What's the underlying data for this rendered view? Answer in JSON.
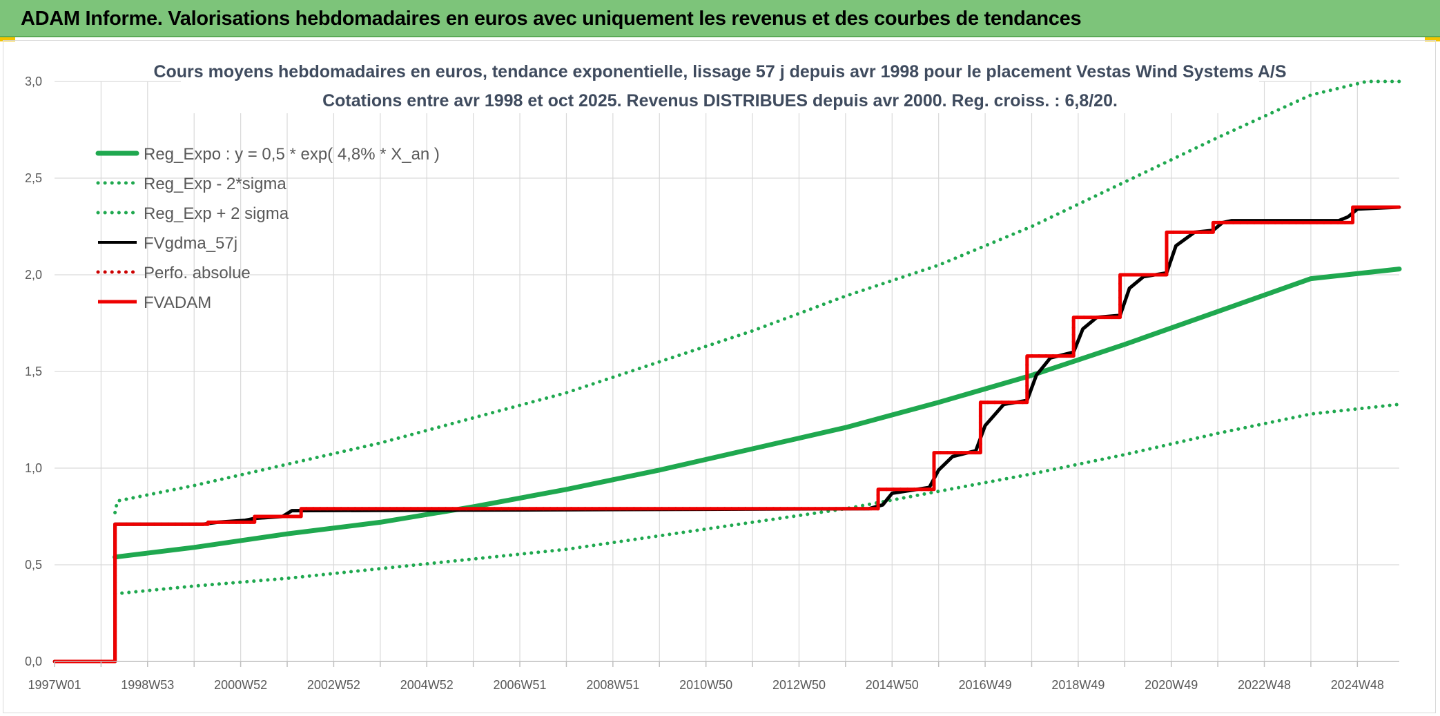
{
  "banner": {
    "title": "ADAM Informe. Valorisations hebdomadaires en euros avec uniquement les revenus et des courbes de tendances"
  },
  "colors": {
    "banner_bg": "#7dc47a",
    "reg_green": "#1fa84f",
    "fvgdma_black": "#000000",
    "fvadam_red": "#ee0000",
    "perfo_red": "#cc0000",
    "grid": "#d9d9d9",
    "title_text": "#3f4b5e"
  },
  "chart_data": {
    "type": "line",
    "title": "Cours moyens hebdomadaires en euros, tendance exponentielle, lissage 57 j depuis avr 1998 pour le placement Vestas Wind Systems A/S",
    "subtitle": "Cotations entre avr 1998 et oct 2025. Revenus DISTRIBUES depuis avr 2000. Reg. croiss. : 6,8/20.",
    "xlabel": "",
    "ylabel": "",
    "x_unit": "year",
    "xlim": [
      1997.0,
      2025.9
    ],
    "ylim": [
      0,
      3.0
    ],
    "y_ticks": [
      "0,0",
      "0,5",
      "1,0",
      "1,5",
      "2,0",
      "2,5",
      "3,0"
    ],
    "y_tick_values": [
      0,
      0.5,
      1.0,
      1.5,
      2.0,
      2.5,
      3.0
    ],
    "x_ticks": [
      "1997W01",
      "1998W53",
      "2000W52",
      "2002W52",
      "2004W52",
      "2006W51",
      "2008W51",
      "2010W50",
      "2012W50",
      "2014W50",
      "2016W49",
      "2018W49",
      "2020W49",
      "2022W48",
      "2024W48"
    ],
    "x_tick_values": [
      1997.0,
      1999.0,
      2001.0,
      2003.0,
      2005.0,
      2007.0,
      2009.0,
      2011.0,
      2013.0,
      2015.0,
      2017.0,
      2019.0,
      2021.0,
      2023.0,
      2025.0
    ],
    "grid": true,
    "legend_position": "top-left",
    "series": [
      {
        "name": "Reg_Expo : y = 0,5 * exp( 4,8% *  X_an )",
        "style": "solid-thick",
        "color": "#1fa84f",
        "x": [
          1998.3,
          2000,
          2002,
          2004,
          2006,
          2008,
          2010,
          2012,
          2014,
          2016,
          2018,
          2020,
          2022,
          2024,
          2025.9
        ],
        "y": [
          0.54,
          0.59,
          0.66,
          0.72,
          0.8,
          0.89,
          0.99,
          1.1,
          1.21,
          1.34,
          1.48,
          1.64,
          1.81,
          1.98,
          2.03
        ]
      },
      {
        "name": "Reg_Exp - 2*sigma",
        "style": "dotted",
        "color": "#1fa84f",
        "x": [
          1998.3,
          2000,
          2002,
          2004,
          2006,
          2008,
          2010,
          2012,
          2014,
          2016,
          2018,
          2020,
          2022,
          2024,
          2025.9
        ],
        "y": [
          0.35,
          0.39,
          0.43,
          0.48,
          0.53,
          0.58,
          0.65,
          0.72,
          0.79,
          0.88,
          0.97,
          1.07,
          1.18,
          1.28,
          1.33
        ]
      },
      {
        "name": "Reg_Exp + 2 sigma",
        "style": "dotted",
        "color": "#1fa84f",
        "x": [
          1998.3,
          1998.35,
          2000,
          2002,
          2004,
          2006,
          2008,
          2010,
          2012,
          2014,
          2016,
          2018,
          2020,
          2022,
          2024,
          2025.2,
          2025.9
        ],
        "y": [
          0.77,
          0.83,
          0.91,
          1.02,
          1.13,
          1.26,
          1.39,
          1.55,
          1.71,
          1.89,
          2.05,
          2.25,
          2.48,
          2.71,
          2.93,
          3.0,
          3.0
        ]
      },
      {
        "name": "FVgdma_57j",
        "style": "solid",
        "color": "#000000",
        "x": [
          1997.0,
          1998.3,
          1998.3,
          1999.5,
          2000.2,
          2000.5,
          2001.1,
          2001.3,
          2001.9,
          2002.1,
          2014.5,
          2014.8,
          2015.0,
          2015.8,
          2016.0,
          2016.3,
          2016.8,
          2017.0,
          2017.4,
          2017.9,
          2018.1,
          2018.4,
          2018.9,
          2019.1,
          2019.4,
          2019.9,
          2020.1,
          2020.4,
          2020.9,
          2021.1,
          2021.5,
          2021.9,
          2022.1,
          2022.3,
          2024.6,
          2024.8,
          2025.0,
          2025.9
        ],
        "y": [
          0,
          0,
          0.71,
          0.71,
          0.71,
          0.72,
          0.73,
          0.74,
          0.75,
          0.78,
          0.79,
          0.81,
          0.87,
          0.9,
          0.99,
          1.06,
          1.09,
          1.22,
          1.33,
          1.35,
          1.48,
          1.57,
          1.6,
          1.72,
          1.78,
          1.79,
          1.93,
          1.99,
          2.01,
          2.15,
          2.22,
          2.23,
          2.27,
          2.28,
          2.28,
          2.3,
          2.34,
          2.35
        ]
      },
      {
        "name": "Perfo. absolue",
        "style": "dotted",
        "color": "#cc0000",
        "x": [
          1997.0,
          1998.3,
          1998.3,
          2000.3,
          2000.3,
          2001.3,
          2001.3,
          2002.3,
          2002.3,
          2014.7,
          2014.7,
          2015.9,
          2015.9,
          2016.9,
          2016.9,
          2017.9,
          2017.9,
          2018.9,
          2018.9,
          2019.9,
          2019.9,
          2020.9,
          2020.9,
          2021.9,
          2021.9,
          2024.9,
          2024.9,
          2025.9
        ],
        "y": [
          0,
          0,
          0.71,
          0.71,
          0.72,
          0.72,
          0.75,
          0.75,
          0.79,
          0.79,
          0.89,
          0.89,
          1.08,
          1.08,
          1.34,
          1.34,
          1.58,
          1.58,
          1.78,
          1.78,
          2.0,
          2.0,
          2.22,
          2.22,
          2.27,
          2.27,
          2.35,
          2.35
        ]
      },
      {
        "name": "FVADAM",
        "style": "solid-thick",
        "color": "#ee0000",
        "x": [
          1997.0,
          1998.3,
          1998.3,
          2000.3,
          2000.3,
          2001.3,
          2001.3,
          2002.3,
          2002.3,
          2014.7,
          2014.7,
          2015.9,
          2015.9,
          2016.9,
          2016.9,
          2017.9,
          2017.9,
          2018.9,
          2018.9,
          2019.9,
          2019.9,
          2020.9,
          2020.9,
          2021.9,
          2021.9,
          2024.9,
          2024.9,
          2025.9
        ],
        "y": [
          0,
          0,
          0.71,
          0.71,
          0.72,
          0.72,
          0.75,
          0.75,
          0.79,
          0.79,
          0.89,
          0.89,
          1.08,
          1.08,
          1.34,
          1.34,
          1.58,
          1.58,
          1.78,
          1.78,
          2.0,
          2.0,
          2.22,
          2.22,
          2.27,
          2.27,
          2.35,
          2.35
        ]
      }
    ]
  }
}
